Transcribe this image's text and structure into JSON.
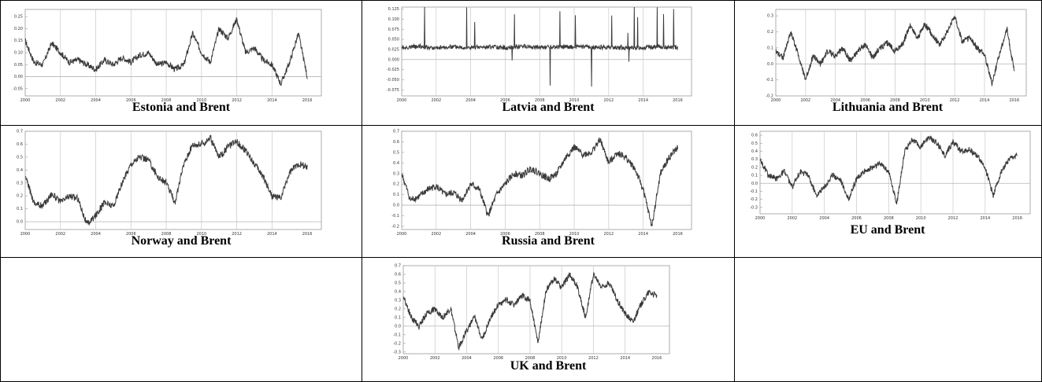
{
  "colors": {
    "line": "#3a3a3a",
    "grid": "#c8c8c8",
    "axis": "#999999",
    "zero": "#b4b4b4",
    "border": "#000000"
  },
  "x_ticks": [
    "2000",
    "2002",
    "2004",
    "2006",
    "2008",
    "2010",
    "2012",
    "2014",
    "2016"
  ],
  "chart_data": [
    {
      "type": "line",
      "title": "Estonia and Brent",
      "xlim": [
        2000,
        2016.8
      ],
      "ylim": [
        -0.08,
        0.28
      ],
      "yticks": [
        "-0.05",
        "0.00",
        "0.05",
        "0.10",
        "0.15",
        "0.20",
        "0.25"
      ],
      "ytick_values": [
        -0.05,
        0.0,
        0.05,
        0.1,
        0.15,
        0.2,
        0.25
      ],
      "series": [
        {
          "x": [
            2000,
            2000.5,
            2001,
            2001.5,
            2002,
            2002.5,
            2003,
            2003.5,
            2004,
            2004.5,
            2005,
            2005.5,
            2006,
            2006.5,
            2007,
            2007.5,
            2008,
            2008.5,
            2009,
            2009.5,
            2010,
            2010.5,
            2011,
            2011.5,
            2012,
            2012.5,
            2013,
            2013.5,
            2014,
            2014.5,
            2015,
            2015.5,
            2016
          ],
          "y": [
            0.15,
            0.06,
            0.05,
            0.14,
            0.1,
            0.06,
            0.07,
            0.05,
            0.03,
            0.07,
            0.05,
            0.08,
            0.06,
            0.09,
            0.1,
            0.05,
            0.06,
            0.03,
            0.05,
            0.18,
            0.1,
            0.06,
            0.2,
            0.16,
            0.24,
            0.1,
            0.12,
            0.07,
            0.05,
            -0.03,
            0.06,
            0.18,
            0.0
          ]
        }
      ]
    },
    {
      "type": "line",
      "title": "Latvia and Brent",
      "xlim": [
        2000,
        2016.8
      ],
      "ylim": [
        -0.09,
        0.13
      ],
      "yticks": [
        "-0.075",
        "-0.050",
        "-0.025",
        "0.000",
        "0.025",
        "0.050",
        "0.075",
        "0.100",
        "0.125"
      ],
      "ytick_values": [
        -0.075,
        -0.05,
        -0.025,
        0.0,
        0.025,
        0.05,
        0.075,
        0.1,
        0.125
      ],
      "series": [
        {
          "x": [
            2000,
            2001,
            2002,
            2003,
            2004,
            2005,
            2006,
            2007,
            2008,
            2009,
            2010,
            2011,
            2012,
            2013,
            2014,
            2015,
            2016
          ],
          "y": [
            0.03,
            0.033,
            0.028,
            0.032,
            0.03,
            0.031,
            0.029,
            0.033,
            0.03,
            0.031,
            0.032,
            0.03,
            0.031,
            0.029,
            0.03,
            0.032,
            0.03
          ]
        }
      ]
    },
    {
      "type": "line",
      "title": "Lithuania and Brent",
      "xlim": [
        2000,
        2016.8
      ],
      "ylim": [
        -0.2,
        0.34
      ],
      "yticks": [
        "-0.2",
        "-0.1",
        "0.0",
        "0.1",
        "0.2",
        "0.3"
      ],
      "ytick_values": [
        -0.2,
        -0.1,
        0.0,
        0.1,
        0.2,
        0.3
      ],
      "series": [
        {
          "x": [
            2000,
            2000.5,
            2001,
            2001.5,
            2002,
            2002.5,
            2003,
            2003.5,
            2004,
            2004.5,
            2005,
            2005.5,
            2006,
            2006.5,
            2007,
            2007.5,
            2008,
            2008.5,
            2009,
            2009.5,
            2010,
            2010.5,
            2011,
            2011.5,
            2012,
            2012.5,
            2013,
            2013.5,
            2014,
            2014.5,
            2015,
            2015.5,
            2016
          ],
          "y": [
            0.08,
            0.04,
            0.2,
            0.06,
            -0.1,
            0.05,
            0.0,
            0.08,
            0.05,
            0.1,
            0.02,
            0.08,
            0.12,
            0.04,
            0.1,
            0.13,
            0.08,
            0.12,
            0.24,
            0.16,
            0.25,
            0.18,
            0.12,
            0.2,
            0.3,
            0.14,
            0.16,
            0.1,
            0.06,
            -0.12,
            0.06,
            0.22,
            -0.05
          ]
        }
      ]
    },
    {
      "type": "line",
      "title": "Norway and Brent",
      "xlim": [
        2000,
        2016.8
      ],
      "ylim": [
        -0.06,
        0.7
      ],
      "yticks": [
        "0.0",
        "0.1",
        "0.2",
        "0.3",
        "0.4",
        "0.5",
        "0.6",
        "0.7"
      ],
      "ytick_values": [
        0.0,
        0.1,
        0.2,
        0.3,
        0.4,
        0.5,
        0.6,
        0.7
      ],
      "series": [
        {
          "x": [
            2000,
            2000.5,
            2001,
            2001.5,
            2002,
            2002.5,
            2003,
            2003.5,
            2004,
            2004.5,
            2005,
            2005.5,
            2006,
            2006.5,
            2007,
            2007.5,
            2008,
            2008.5,
            2009,
            2009.5,
            2010,
            2010.5,
            2011,
            2011.5,
            2012,
            2012.5,
            2013,
            2013.5,
            2014,
            2014.5,
            2015,
            2015.5,
            2016
          ],
          "y": [
            0.35,
            0.15,
            0.12,
            0.22,
            0.15,
            0.2,
            0.18,
            -0.02,
            0.05,
            0.15,
            0.12,
            0.3,
            0.45,
            0.5,
            0.48,
            0.35,
            0.3,
            0.15,
            0.45,
            0.6,
            0.6,
            0.65,
            0.5,
            0.58,
            0.62,
            0.55,
            0.45,
            0.35,
            0.2,
            0.18,
            0.38,
            0.45,
            0.42
          ]
        }
      ]
    },
    {
      "type": "line",
      "title": "Russia and Brent",
      "xlim": [
        2000,
        2016.8
      ],
      "ylim": [
        -0.23,
        0.7
      ],
      "yticks": [
        "-0.2",
        "-0.1",
        "0.0",
        "0.1",
        "0.2",
        "0.3",
        "0.4",
        "0.5",
        "0.6",
        "0.7"
      ],
      "ytick_values": [
        -0.2,
        -0.1,
        0.0,
        0.1,
        0.2,
        0.3,
        0.4,
        0.5,
        0.6,
        0.7
      ],
      "series": [
        {
          "x": [
            2000,
            2000.5,
            2001,
            2001.5,
            2002,
            2002.5,
            2003,
            2003.5,
            2004,
            2004.5,
            2005,
            2005.5,
            2006,
            2006.5,
            2007,
            2007.5,
            2008,
            2008.5,
            2009,
            2009.5,
            2010,
            2010.5,
            2011,
            2011.5,
            2012,
            2012.5,
            2013,
            2013.5,
            2014,
            2014.5,
            2015,
            2015.5,
            2016
          ],
          "y": [
            0.3,
            0.05,
            0.08,
            0.15,
            0.18,
            0.1,
            0.12,
            0.05,
            0.2,
            0.15,
            -0.1,
            0.1,
            0.2,
            0.3,
            0.28,
            0.35,
            0.3,
            0.25,
            0.3,
            0.45,
            0.55,
            0.48,
            0.5,
            0.62,
            0.4,
            0.5,
            0.45,
            0.35,
            0.15,
            -0.2,
            0.3,
            0.45,
            0.55
          ]
        }
      ]
    },
    {
      "type": "line",
      "title": "EU and Brent",
      "xlim": [
        2000,
        2016.8
      ],
      "ylim": [
        -0.38,
        0.65
      ],
      "yticks": [
        "-0.3",
        "-0.2",
        "-0.1",
        "0.0",
        "0.1",
        "0.2",
        "0.3",
        "0.4",
        "0.5",
        "0.6"
      ],
      "ytick_values": [
        -0.3,
        -0.2,
        -0.1,
        0.0,
        0.1,
        0.2,
        0.3,
        0.4,
        0.5,
        0.6
      ],
      "series": [
        {
          "x": [
            2000,
            2000.5,
            2001,
            2001.5,
            2002,
            2002.5,
            2003,
            2003.5,
            2004,
            2004.5,
            2005,
            2005.5,
            2006,
            2006.5,
            2007,
            2007.5,
            2008,
            2008.5,
            2009,
            2009.5,
            2010,
            2010.5,
            2011,
            2011.5,
            2012,
            2012.5,
            2013,
            2013.5,
            2014,
            2014.5,
            2015,
            2015.5,
            2016
          ],
          "y": [
            0.3,
            0.1,
            0.05,
            0.15,
            -0.05,
            0.15,
            0.1,
            -0.15,
            -0.05,
            0.1,
            0.05,
            -0.2,
            0.05,
            0.15,
            0.2,
            0.25,
            0.15,
            -0.25,
            0.4,
            0.55,
            0.45,
            0.58,
            0.5,
            0.35,
            0.52,
            0.4,
            0.42,
            0.35,
            0.2,
            -0.15,
            0.15,
            0.3,
            0.35
          ]
        }
      ]
    },
    {
      "type": "line",
      "title": "UK and Brent",
      "xlim": [
        2000,
        2016.8
      ],
      "ylim": [
        -0.32,
        0.7
      ],
      "yticks": [
        "-0.3",
        "-0.2",
        "-0.1",
        "0.0",
        "0.1",
        "0.2",
        "0.3",
        "0.4",
        "0.5",
        "0.6",
        "0.7"
      ],
      "ytick_values": [
        -0.3,
        -0.2,
        -0.1,
        0.0,
        0.1,
        0.2,
        0.3,
        0.4,
        0.5,
        0.6,
        0.7
      ],
      "series": [
        {
          "x": [
            2000,
            2000.5,
            2001,
            2001.5,
            2002,
            2002.5,
            2003,
            2003.5,
            2004,
            2004.5,
            2005,
            2005.5,
            2006,
            2006.5,
            2007,
            2007.5,
            2008,
            2008.5,
            2009,
            2009.5,
            2010,
            2010.5,
            2011,
            2011.5,
            2012,
            2012.5,
            2013,
            2013.5,
            2014,
            2014.5,
            2015,
            2015.5,
            2016
          ],
          "y": [
            0.35,
            0.1,
            0.0,
            0.15,
            0.2,
            0.1,
            0.2,
            -0.25,
            -0.05,
            0.1,
            -0.15,
            0.1,
            0.25,
            0.3,
            0.25,
            0.35,
            0.3,
            -0.2,
            0.4,
            0.55,
            0.45,
            0.6,
            0.45,
            0.1,
            0.6,
            0.45,
            0.5,
            0.3,
            0.15,
            0.05,
            0.25,
            0.4,
            0.35
          ]
        }
      ]
    }
  ]
}
